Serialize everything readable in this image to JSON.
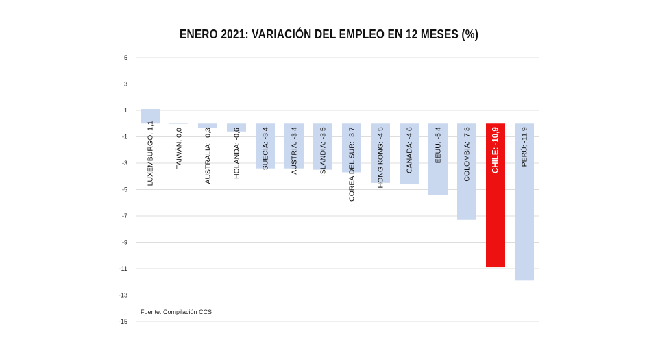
{
  "chart_data": {
    "type": "bar",
    "title": "ENERO 2021: VARIACIÓN DEL EMPLEO EN 12 MESES (%)",
    "categories": [
      "LUXEMBURGO",
      "TAIWÁN",
      "AUSTRALIA",
      "HOLANDA",
      "SUECIA",
      "AUSTRIA",
      "ISLANDIA",
      "COREA DEL SUR",
      "HONG KONG",
      "CANADÁ",
      "EEUU",
      "COLOMBIA",
      "CHILE",
      "PERÚ"
    ],
    "values": [
      1.1,
      0.0,
      -0.3,
      -0.6,
      -3.4,
      -3.4,
      -3.5,
      -3.7,
      -4.5,
      -4.6,
      -5.4,
      -7.3,
      -10.9,
      -11.9
    ],
    "labels": [
      "LUXEMBURGO: 1,1",
      "TAIWÁN: 0,0",
      "AUSTRALIA: -0,3",
      "HOLANDA: -0,6",
      "SUECIA: -3,4",
      "AUSTRIA: -3,4",
      "ISLANDIA: -3,5",
      "COREA DEL SUR: -3,7",
      "HONG KONG: -4,5",
      "CANADÁ: -4,6",
      "EEUU: -5,4",
      "COLOMBIA: -7,3",
      "CHILE: -10,9",
      "PERÚ: -11,9"
    ],
    "highlight_index": 12,
    "ylim": [
      -15,
      5
    ],
    "yticks": [
      "5",
      "3",
      "1",
      "-1",
      "-3",
      "-5",
      "-7",
      "-9",
      "-11",
      "-13",
      "-15"
    ],
    "ytick_values": [
      5,
      3,
      1,
      -1,
      -3,
      -5,
      -7,
      -9,
      -11,
      -13,
      -15
    ],
    "grid": true,
    "colors": {
      "bar": "#c9d8ee",
      "highlight": "#ee1111",
      "grid": "#dddddd"
    },
    "source": "Fuente: Compilación CCS"
  }
}
